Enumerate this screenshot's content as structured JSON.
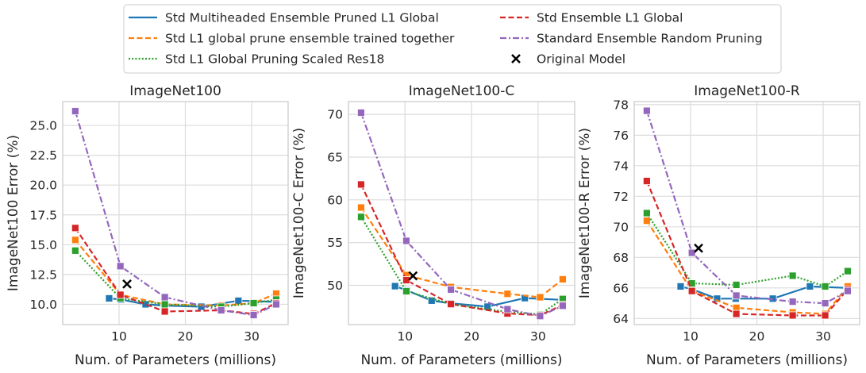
{
  "legend": [
    {
      "label": "Std Multiheaded Ensemble Pruned L1 Global",
      "color": "#1f77b4",
      "dash": "solid"
    },
    {
      "label": "Std Ensemble L1 Global",
      "color": "#d62728",
      "dash": "dashed"
    },
    {
      "label": "Std L1 global prune ensemble trained together",
      "color": "#ff7f0e",
      "dash": "dashed"
    },
    {
      "label": "Standard Ensemble Random Pruning",
      "color": "#9467bd",
      "dash": "dashdot"
    },
    {
      "label": "Std L1 Global Pruning Scaled Res18",
      "color": "#2ca02c",
      "dash": "dotted"
    },
    {
      "label": "Original Model",
      "color": "#000000",
      "dash": "marker-x"
    }
  ],
  "chart_data": [
    {
      "type": "line",
      "title": "ImageNet100",
      "xlabel": "Num. of Parameters (millions)",
      "ylabel": "ImageNet100 Error (%)",
      "xlim": [
        1.5,
        35.5
      ],
      "ylim": [
        8.3,
        27.0
      ],
      "xticks": [
        10,
        20,
        30
      ],
      "yticks": [
        10.0,
        12.5,
        15.0,
        17.5,
        20.0,
        22.5,
        25.0
      ],
      "ytick_labels": [
        "10.0",
        "12.5",
        "15.0",
        "17.5",
        "20.0",
        "22.5",
        "25.0"
      ],
      "grid": true,
      "series": [
        {
          "name": "Std Multiheaded Ensemble Pruned L1 Global",
          "x": [
            8.5,
            10.3,
            14.0,
            16.8,
            22.4,
            28.0,
            33.6
          ],
          "y": [
            10.5,
            10.4,
            10.0,
            9.9,
            9.8,
            10.3,
            10.2
          ]
        },
        {
          "name": "Std Ensemble L1 Global",
          "x": [
            3.4,
            10.2,
            16.9,
            25.4,
            30.3,
            33.7
          ],
          "y": [
            16.4,
            10.8,
            9.4,
            9.5,
            9.2,
            10.1
          ]
        },
        {
          "name": "Std L1 global prune ensemble trained together",
          "x": [
            3.4,
            10.2,
            16.9,
            25.4,
            30.3,
            33.7
          ],
          "y": [
            15.4,
            10.8,
            10.0,
            9.9,
            10.1,
            10.9
          ]
        },
        {
          "name": "Standard Ensemble Random Pruning",
          "x": [
            3.4,
            10.2,
            16.9,
            25.4,
            30.3,
            33.7
          ],
          "y": [
            26.2,
            13.2,
            10.6,
            9.5,
            9.1,
            10.0
          ]
        },
        {
          "name": "Std L1 Global Pruning Scaled Res18",
          "x": [
            3.4,
            10.2,
            16.9,
            25.4,
            30.3,
            33.7
          ],
          "y": [
            14.5,
            10.5,
            10.0,
            9.8,
            10.1,
            10.4
          ]
        },
        {
          "name": "Original Model",
          "x": [
            11.2
          ],
          "y": [
            11.7
          ]
        }
      ]
    },
    {
      "type": "line",
      "title": "ImageNet100-C",
      "xlabel": "Num. of Parameters (millions)",
      "ylabel": "ImageNet100-C Error (%)",
      "xlim": [
        1.5,
        35.5
      ],
      "ylim": [
        45.4,
        71.5
      ],
      "xticks": [
        10,
        20,
        30
      ],
      "yticks": [
        50,
        55,
        60,
        65,
        70
      ],
      "ytick_labels": [
        "50",
        "55",
        "60",
        "65",
        "70"
      ],
      "grid": true,
      "series": [
        {
          "name": "Std Multiheaded Ensemble Pruned L1 Global",
          "x": [
            8.5,
            10.3,
            14.0,
            16.8,
            22.4,
            28.0,
            33.6
          ],
          "y": [
            49.9,
            49.4,
            48.2,
            47.9,
            47.5,
            48.5,
            48.3
          ]
        },
        {
          "name": "Std Ensemble L1 Global",
          "x": [
            3.4,
            10.2,
            16.9,
            25.4,
            30.3,
            33.7
          ],
          "y": [
            61.8,
            50.6,
            47.8,
            46.7,
            46.5,
            47.7
          ]
        },
        {
          "name": "Std L1 global prune ensemble trained together",
          "x": [
            3.4,
            10.2,
            16.9,
            25.4,
            30.3,
            33.7
          ],
          "y": [
            59.1,
            51.2,
            49.8,
            49.0,
            48.6,
            50.7
          ]
        },
        {
          "name": "Standard Ensemble Random Pruning",
          "x": [
            3.4,
            10.2,
            16.9,
            25.4,
            30.3,
            33.7
          ],
          "y": [
            70.2,
            55.2,
            49.5,
            47.2,
            46.4,
            47.6
          ]
        },
        {
          "name": "Std L1 Global Pruning Scaled Res18",
          "x": [
            3.4,
            10.2,
            16.9,
            25.4,
            30.3,
            33.7
          ],
          "y": [
            58.0,
            49.3,
            47.8,
            46.9,
            46.6,
            48.4
          ]
        },
        {
          "name": "Original Model",
          "x": [
            11.2
          ],
          "y": [
            51.1
          ]
        }
      ]
    },
    {
      "type": "line",
      "title": "ImageNet100-R",
      "xlabel": "Num. of Parameters (millions)",
      "ylabel": "ImageNet100-R Error (%)",
      "xlim": [
        1.5,
        35.5
      ],
      "ylim": [
        63.6,
        78.2
      ],
      "xticks": [
        10,
        20,
        30
      ],
      "yticks": [
        64,
        66,
        68,
        70,
        72,
        74,
        76,
        78
      ],
      "ytick_labels": [
        "64",
        "66",
        "68",
        "70",
        "72",
        "74",
        "76",
        "78"
      ],
      "grid": true,
      "series": [
        {
          "name": "Std Multiheaded Ensemble Pruned L1 Global",
          "x": [
            8.5,
            10.3,
            14.0,
            16.8,
            22.4,
            28.0,
            33.6
          ],
          "y": [
            66.1,
            65.9,
            65.3,
            65.3,
            65.3,
            66.1,
            66.0
          ]
        },
        {
          "name": "Std Ensemble L1 Global",
          "x": [
            3.4,
            10.2,
            16.9,
            25.4,
            30.3,
            33.7
          ],
          "y": [
            73.0,
            65.8,
            64.3,
            64.2,
            64.2,
            65.9
          ]
        },
        {
          "name": "Std L1 global prune ensemble trained together",
          "x": [
            3.4,
            10.2,
            16.9,
            25.4,
            30.3,
            33.7
          ],
          "y": [
            70.4,
            65.8,
            64.7,
            64.4,
            64.3,
            66.1
          ]
        },
        {
          "name": "Standard Ensemble Random Pruning",
          "x": [
            3.4,
            10.2,
            16.9,
            25.4,
            30.3,
            33.7
          ],
          "y": [
            77.6,
            68.3,
            65.5,
            65.1,
            65.0,
            65.8
          ]
        },
        {
          "name": "Std L1 Global Pruning Scaled Res18",
          "x": [
            3.4,
            10.2,
            16.9,
            25.4,
            30.3,
            33.7
          ],
          "y": [
            70.9,
            66.3,
            66.2,
            66.8,
            66.1,
            67.1
          ]
        },
        {
          "name": "Original Model",
          "x": [
            11.2
          ],
          "y": [
            68.6
          ]
        }
      ]
    }
  ]
}
